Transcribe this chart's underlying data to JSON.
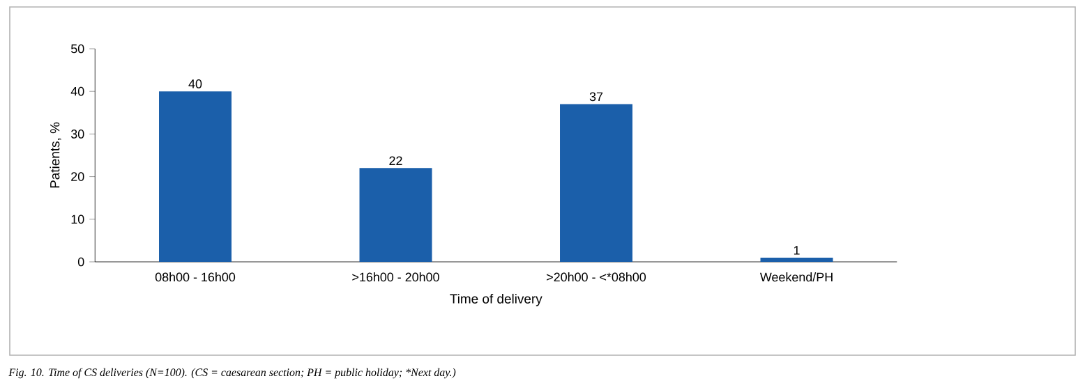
{
  "chart_data": {
    "type": "bar",
    "categories": [
      "08h00 - 16h00",
      ">16h00 - 20h00",
      ">20h00 - <*08h00",
      "Weekend/PH"
    ],
    "values": [
      40,
      22,
      37,
      1
    ],
    "color": "#1b5faa",
    "ylim": [
      0,
      50
    ],
    "yticks": [
      0,
      10,
      20,
      30,
      40,
      50
    ],
    "xlabel": "Time of delivery",
    "ylabel": "Patients, %",
    "data_labels": true,
    "grid": false,
    "annotations": [
      "Fig. 10. Time of CS deliveries (N=100). (CS = caesarean section; PH = public holiday; *Next day.)"
    ]
  }
}
